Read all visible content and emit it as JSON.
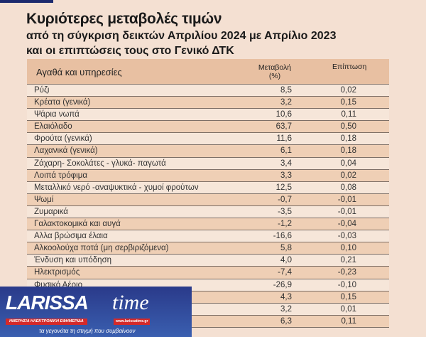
{
  "title": "Κυριότερες μεταβολές τιμών",
  "subtitle1": "από τη σύγκριση δεικτών Απριλίου 2024 με Απρίλιο 2023",
  "subtitle2": "και οι επιπτώσεις τους στο Γενικό ΔΤΚ",
  "table": {
    "headers": [
      "Αγαθά και υπηρεσίες",
      "Μεταβολή (%)",
      "Επίπτωση"
    ],
    "rows": [
      [
        "Ρύζι",
        "8,5",
        "0,02"
      ],
      [
        "Κρέατα (γενικά)",
        "3,2",
        "0,15"
      ],
      [
        "Ψάρια νωπά",
        "10,6",
        "0,11"
      ],
      [
        "Ελαιόλαδο",
        "63,7",
        "0,50"
      ],
      [
        "Φρούτα  (γενικά)",
        "11,6",
        "0,18"
      ],
      [
        "Λαχανικά (γενικά)",
        "6,1",
        "0,18"
      ],
      [
        "Ζάχαρη- Σοκολάτες - γλυκά- παγωτά",
        "3,4",
        "0,04"
      ],
      [
        "Λοιπά τρόφιμα",
        "3,3",
        "0,02"
      ],
      [
        "Μεταλλικό νερό -αναψυκτικά - χυμοί φρούτων",
        "12,5",
        "0,08"
      ],
      [
        "Ψωμί",
        "-0,7",
        "-0,01"
      ],
      [
        "Ζυμαρικά",
        "-3,5",
        "-0,01"
      ],
      [
        "Γαλακτοκομικά και αυγά",
        "-1,2",
        "-0,04"
      ],
      [
        "Αλλα βρώσιμα έλαια",
        "-16,6",
        "-0,03"
      ],
      [
        "Αλκοολούχα ποτά (μη σερβιριζόμενα)",
        "5,8",
        "0,10"
      ],
      [
        "Ένδυση και υπόδηση",
        "4,0",
        "0,21"
      ],
      [
        "Ηλεκτρισμός",
        "-7,4",
        "-0,23"
      ],
      [
        "Φυσικό Αέριο",
        "-26,9",
        "-0,10"
      ],
      [
        "",
        "4,3",
        "0,15"
      ],
      [
        "",
        "3,2",
        "0,01"
      ],
      [
        "",
        "6,3",
        "0,11"
      ]
    ]
  },
  "logo": {
    "name": "LARISSA",
    "name2": "time",
    "url": "www.larissatime.gr",
    "tagline": "ΗΜΕΡΗΣΙΑ ΗΛΕΚΤΡΟΝΙΚΗ ΕΦΗΜΕΡΙΔΑ",
    "slogan": "τα γεγονότα τη στιγμή που συμβαίνουν"
  }
}
